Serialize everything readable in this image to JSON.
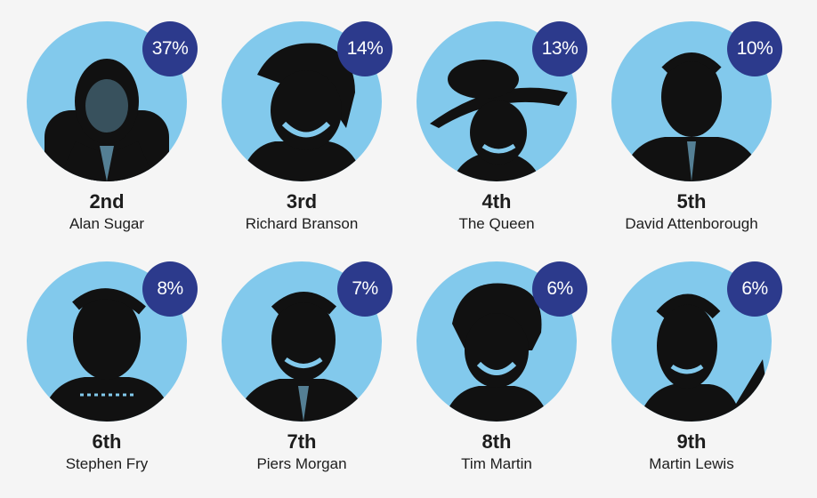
{
  "colors": {
    "background": "#f5f5f5",
    "circle": "#82c9ec",
    "badge": "#2c3a8c",
    "text": "#1d1d1d"
  },
  "people": [
    {
      "rank": "2nd",
      "name": "Alan Sugar",
      "percent": "37%",
      "icon": "portrait-silhouette"
    },
    {
      "rank": "3rd",
      "name": "Richard Branson",
      "percent": "14%",
      "icon": "portrait-silhouette"
    },
    {
      "rank": "4th",
      "name": "The Queen",
      "percent": "13%",
      "icon": "portrait-silhouette"
    },
    {
      "rank": "5th",
      "name": "David Attenborough",
      "percent": "10%",
      "icon": "portrait-silhouette"
    },
    {
      "rank": "6th",
      "name": "Stephen Fry",
      "percent": "8%",
      "icon": "portrait-silhouette"
    },
    {
      "rank": "7th",
      "name": "Piers Morgan",
      "percent": "7%",
      "icon": "portrait-silhouette"
    },
    {
      "rank": "8th",
      "name": "Tim Martin",
      "percent": "6%",
      "icon": "portrait-silhouette"
    },
    {
      "rank": "9th",
      "name": "Martin Lewis",
      "percent": "6%",
      "icon": "portrait-silhouette"
    }
  ]
}
